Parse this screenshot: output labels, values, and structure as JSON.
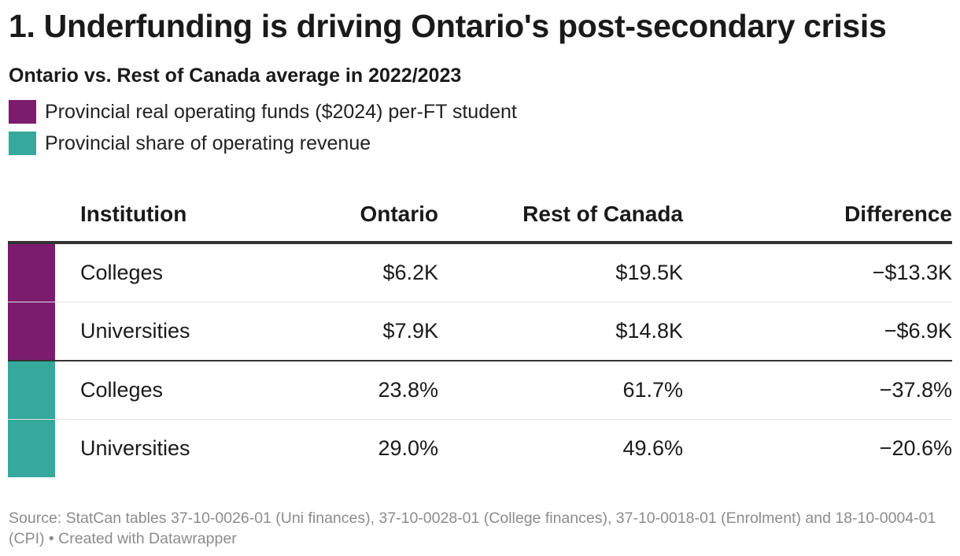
{
  "title": "1. Underfunding is driving Ontario's post-secondary crisis",
  "subtitle": "Ontario vs. Rest of Canada average in 2022/2023",
  "legend": [
    {
      "label": "Provincial real operating funds ($2024) per-FT student",
      "color": "#7b1c6e"
    },
    {
      "label": "Provincial share of operating revenue",
      "color": "#36a89c"
    }
  ],
  "chart_data": {
    "type": "table",
    "columns": [
      "Institution",
      "Ontario",
      "Rest of Canada",
      "Difference"
    ],
    "groups": [
      {
        "name": "Provincial real operating funds ($2024) per-FT student",
        "color": "#7b1c6e",
        "rows": [
          {
            "institution": "Colleges",
            "ontario": "$6.2K",
            "rest_of_canada": "$19.5K",
            "difference": "−$13.3K"
          },
          {
            "institution": "Universities",
            "ontario": "$7.9K",
            "rest_of_canada": "$14.8K",
            "difference": "−$6.9K"
          }
        ]
      },
      {
        "name": "Provincial share of operating revenue",
        "color": "#36a89c",
        "rows": [
          {
            "institution": "Colleges",
            "ontario": "23.8%",
            "rest_of_canada": "61.7%",
            "difference": "−37.8%"
          },
          {
            "institution": "Universities",
            "ontario": "29.0%",
            "rest_of_canada": "49.6%",
            "difference": "−20.6%"
          }
        ]
      }
    ]
  },
  "footer": "Source: StatCan tables 37-10-0026-01 (Uni finances), 37-10-0028-01 (College finances), 37-10-0018-01 (Enrolment) and 18-10-0004-01 (CPI) • Created with Datawrapper"
}
